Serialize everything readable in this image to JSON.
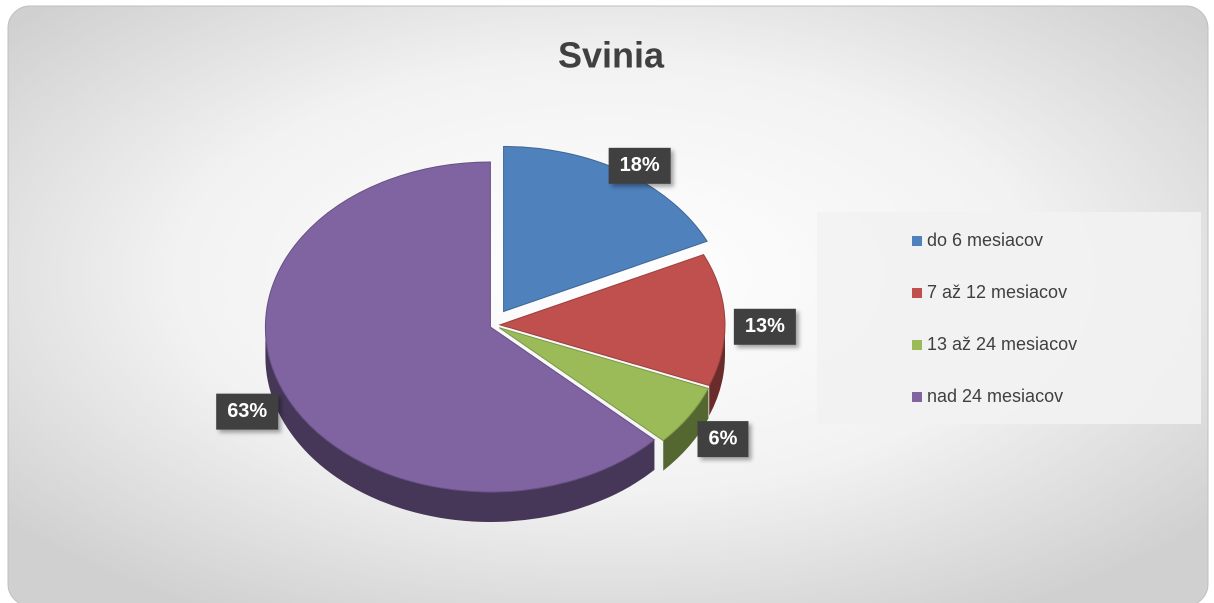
{
  "chart_data": {
    "type": "pie",
    "title": "Svinia",
    "categories": [
      "do 6 mesiacov",
      "7 až 12 mesiacov",
      "13 až 24 mesiacov",
      "nad 24 mesiacov"
    ],
    "values": [
      18,
      13,
      6,
      63
    ],
    "value_labels": [
      "18%",
      "13%",
      "6%",
      "63%"
    ],
    "colors": [
      "#4f81bd",
      "#c0504d",
      "#9bbb59",
      "#8064a2"
    ],
    "legend": "right"
  }
}
